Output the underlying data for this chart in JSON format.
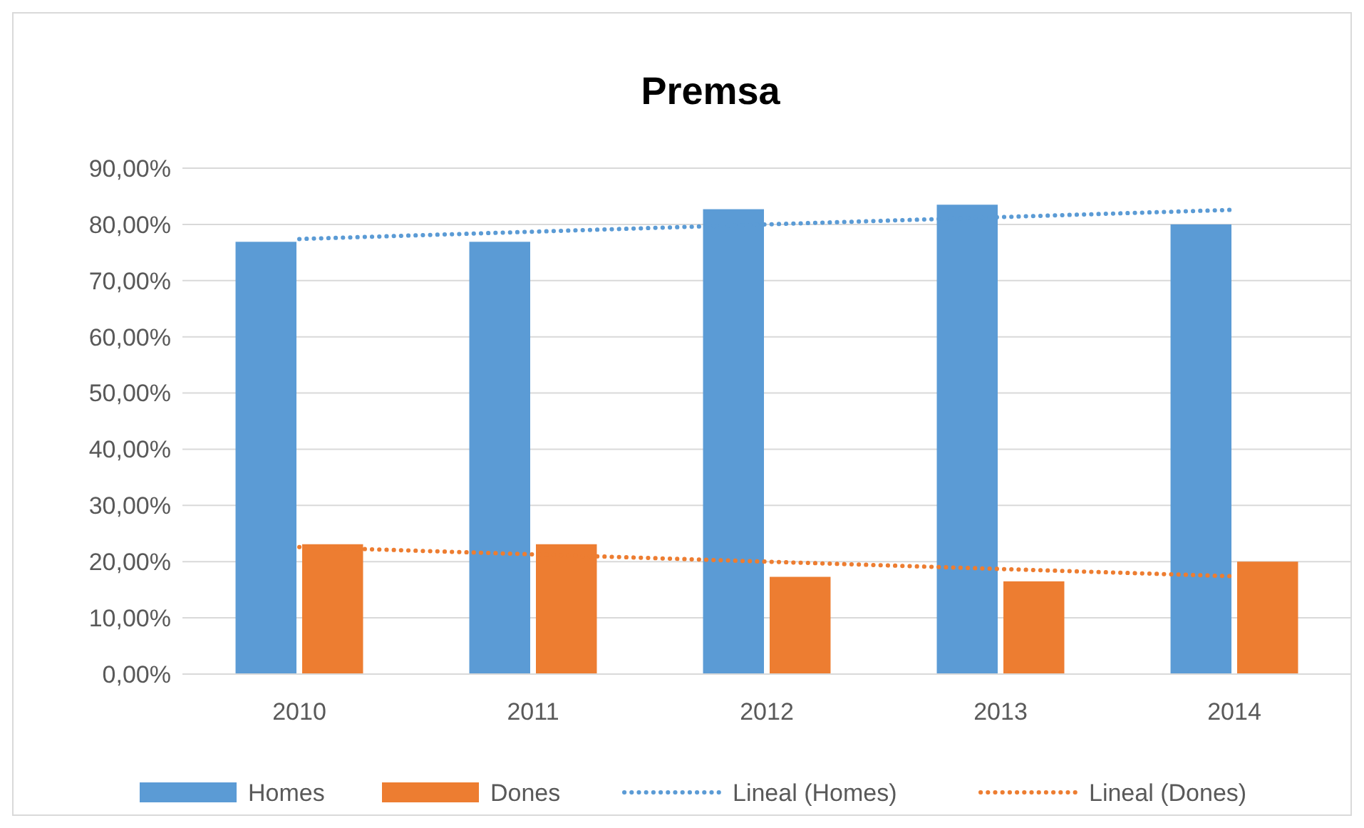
{
  "chart_data": {
    "type": "bar",
    "title": "Premsa",
    "categories": [
      "2010",
      "2011",
      "2012",
      "2013",
      "2014"
    ],
    "series": [
      {
        "name": "Homes",
        "color": "#5b9bd5",
        "values": [
          76.9,
          76.9,
          82.7,
          83.5,
          80.0
        ]
      },
      {
        "name": "Dones",
        "color": "#ed7d31",
        "values": [
          23.1,
          23.1,
          17.3,
          16.5,
          20.0
        ]
      },
      {
        "name": "Lineal (Homes)",
        "type": "line",
        "color": "#5b9bd5",
        "line_style": "dotted",
        "values": [
          77.4,
          78.7,
          80.0,
          81.3,
          82.6
        ]
      },
      {
        "name": "Lineal (Dones)",
        "type": "line",
        "color": "#ed7d31",
        "line_style": "dotted",
        "values": [
          22.6,
          21.3,
          20.0,
          18.7,
          17.4
        ]
      }
    ],
    "ylim": [
      0,
      90
    ],
    "yticks": [
      {
        "value": 0,
        "label": "0,00%"
      },
      {
        "value": 10,
        "label": "10,00%"
      },
      {
        "value": 20,
        "label": "20,00%"
      },
      {
        "value": 30,
        "label": "30,00%"
      },
      {
        "value": 40,
        "label": "40,00%"
      },
      {
        "value": 50,
        "label": "50,00%"
      },
      {
        "value": 60,
        "label": "60,00%"
      },
      {
        "value": 70,
        "label": "70,00%"
      },
      {
        "value": 80,
        "label": "80,00%"
      },
      {
        "value": 90,
        "label": "90,00%"
      }
    ],
    "grid": "y",
    "legend": "bottom",
    "marker": "none"
  }
}
